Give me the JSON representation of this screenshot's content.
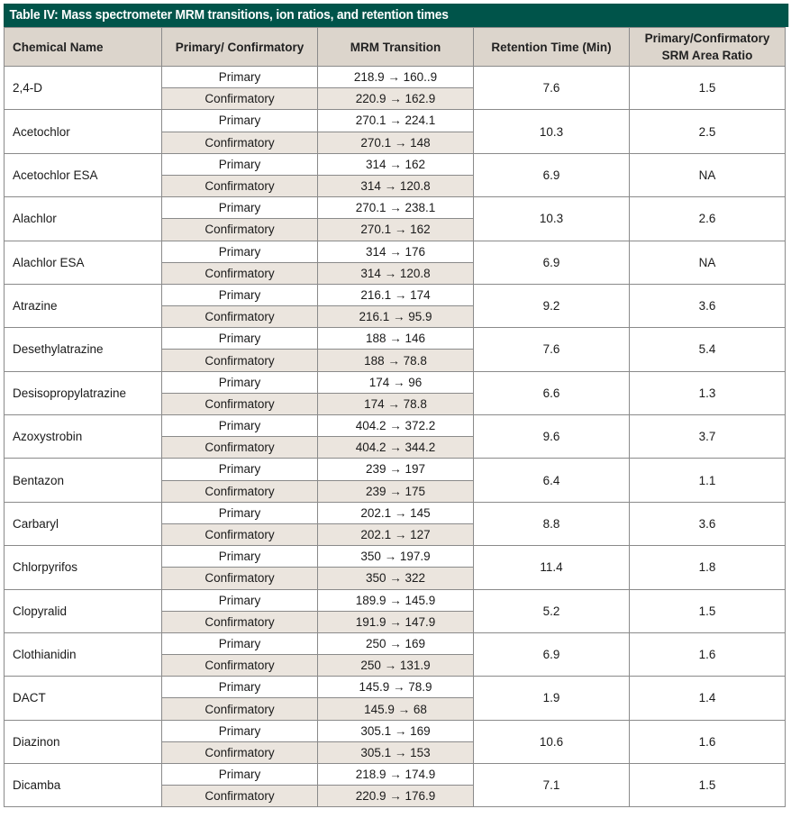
{
  "title": "Table IV: Mass spectrometer MRM transitions, ion ratios, and retention times",
  "headers": [
    "Chemical Name",
    "Primary/ Confirmatory",
    "MRM Transition",
    "Retention Time (Min)",
    "Primary/Confirmatory SRM Area Ratio"
  ],
  "rows": [
    {
      "name": "2,4-D",
      "primary_label": "Primary",
      "confirmatory_label": "Confirmatory",
      "primary_transition": "218.9 → 160..9",
      "confirmatory_transition": "220.9 → 162.9",
      "rt": "7.6",
      "ratio": "1.5"
    },
    {
      "name": "Acetochlor",
      "primary_label": "Primary",
      "confirmatory_label": "Confirmatory",
      "primary_transition": "270.1 → 224.1",
      "confirmatory_transition": "270.1 → 148",
      "rt": "10.3",
      "ratio": "2.5"
    },
    {
      "name": "Acetochlor ESA",
      "primary_label": "Primary",
      "confirmatory_label": "Confirmatory",
      "primary_transition": "314 → 162",
      "confirmatory_transition": "314 → 120.8",
      "rt": "6.9",
      "ratio": "NA"
    },
    {
      "name": "Alachlor",
      "primary_label": "Primary",
      "confirmatory_label": "Confirmatory",
      "primary_transition": "270.1 → 238.1",
      "confirmatory_transition": "270.1 → 162",
      "rt": "10.3",
      "ratio": "2.6"
    },
    {
      "name": "Alachlor ESA",
      "primary_label": "Primary",
      "confirmatory_label": "Confirmatory",
      "primary_transition": "314  → 176",
      "confirmatory_transition": "314 → 120.8",
      "rt": "6.9",
      "ratio": "NA"
    },
    {
      "name": "Atrazine",
      "primary_label": "Primary",
      "confirmatory_label": "Confirmatory",
      "primary_transition": "216.1 → 174",
      "confirmatory_transition": "216.1 → 95.9",
      "rt": "9.2",
      "ratio": "3.6"
    },
    {
      "name": "Desethylatrazine",
      "primary_label": "Primary",
      "confirmatory_label": "Confirmatory",
      "primary_transition": "188 → 146",
      "confirmatory_transition": "188 → 78.8",
      "rt": "7.6",
      "ratio": "5.4"
    },
    {
      "name": "Desisopropylatrazine",
      "primary_label": "Primary",
      "confirmatory_label": "Confirmatory",
      "primary_transition": "174 → 96",
      "confirmatory_transition": "174 → 78.8",
      "rt": "6.6",
      "ratio": "1.3"
    },
    {
      "name": "Azoxystrobin",
      "primary_label": "Primary",
      "confirmatory_label": "Confirmatory",
      "primary_transition": "404.2 → 372.2",
      "confirmatory_transition": "404.2 → 344.2",
      "rt": "9.6",
      "ratio": "3.7"
    },
    {
      "name": "Bentazon",
      "primary_label": "Primary",
      "confirmatory_label": "Confirmatory",
      "primary_transition": "239 → 197",
      "confirmatory_transition": "239 → 175",
      "rt": "6.4",
      "ratio": "1.1"
    },
    {
      "name": "Carbaryl",
      "primary_label": "Primary",
      "confirmatory_label": "Confirmatory",
      "primary_transition": "202.1 → 145",
      "confirmatory_transition": "202.1 → 127",
      "rt": "8.8",
      "ratio": "3.6"
    },
    {
      "name": "Chlorpyrifos",
      "primary_label": "Primary",
      "confirmatory_label": "Confirmatory",
      "primary_transition": "350 → 197.9",
      "confirmatory_transition": "350 → 322",
      "rt": "11.4",
      "ratio": "1.8"
    },
    {
      "name": "Clopyralid",
      "primary_label": "Primary",
      "confirmatory_label": "Confirmatory",
      "primary_transition": "189.9 → 145.9",
      "confirmatory_transition": "191.9 → 147.9",
      "rt": "5.2",
      "ratio": "1.5"
    },
    {
      "name": "Clothianidin",
      "primary_label": "Primary",
      "confirmatory_label": "Confirmatory",
      "primary_transition": "250 → 169",
      "confirmatory_transition": "250 → 131.9",
      "rt": "6.9",
      "ratio": "1.6"
    },
    {
      "name": "DACT",
      "primary_label": "Primary",
      "confirmatory_label": "Confirmatory",
      "primary_transition": "145.9 → 78.9",
      "confirmatory_transition": "145.9 → 68",
      "rt": "1.9",
      "ratio": "1.4"
    },
    {
      "name": "Diazinon",
      "primary_label": "Primary",
      "confirmatory_label": "Confirmatory",
      "primary_transition": "305.1 → 169",
      "confirmatory_transition": "305.1 → 153",
      "rt": "10.6",
      "ratio": "1.6"
    },
    {
      "name": "Dicamba",
      "primary_label": "Primary",
      "confirmatory_label": "Confirmatory",
      "primary_transition": "218.9 → 174.9",
      "confirmatory_transition": "220.9 → 176.9",
      "rt": "7.1",
      "ratio": "1.5"
    }
  ]
}
